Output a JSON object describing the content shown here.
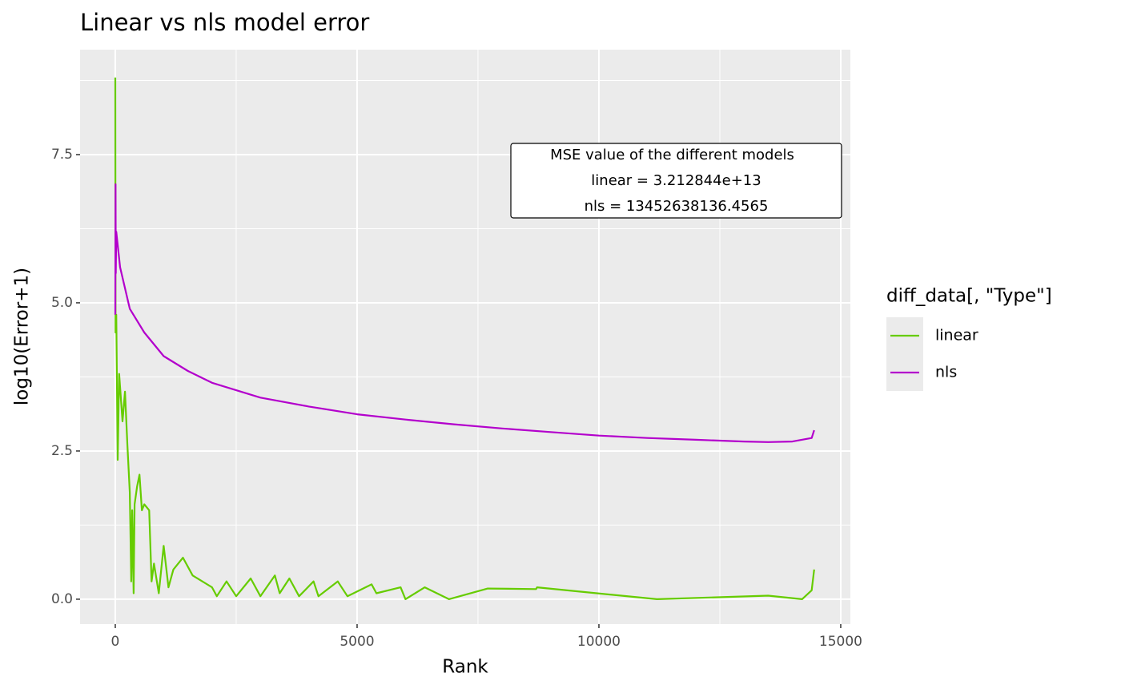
{
  "chart_data": {
    "type": "line",
    "title": "Linear vs nls model error",
    "x_label": "Rank",
    "y_label": "log10(Error+1)",
    "legend_title": "diff_data[, \"Type\"]",
    "legend": "right",
    "annotation": [
      "MSE  value of the different models",
      "linear = 3.212844e+13",
      "nls = 13452638136.4565"
    ],
    "xlim": [
      -728,
      15199
    ],
    "ylim": [
      -0.42,
      9.27
    ],
    "xticks": [
      0,
      5000,
      10000,
      15000
    ],
    "yticks": [
      {
        "value": 0,
        "label": "0.0"
      },
      2.5,
      {
        "value": 5,
        "label": "5.0"
      },
      7.5
    ],
    "minor_xticks": [
      2500,
      7500,
      12500
    ],
    "minor_yticks": [
      1.25,
      3.75,
      6.25,
      8.75
    ],
    "grid": true,
    "series": [
      {
        "name": "linear",
        "color": "#66cc00",
        "x": [
          0,
          5,
          20,
          50,
          80,
          150,
          200,
          250,
          300,
          330,
          350,
          380,
          400,
          450,
          500,
          550,
          600,
          700,
          750,
          800,
          900,
          1000,
          1100,
          1200,
          1400,
          1600,
          1800,
          2000,
          2100,
          2300,
          2500,
          2800,
          3000,
          3300,
          3400,
          3600,
          3800,
          4100,
          4200,
          4600,
          4800,
          5300,
          5400,
          5900,
          6000,
          6400,
          6900,
          7700,
          8700,
          8720,
          11200,
          13500,
          14200,
          14400,
          14450
        ],
        "values": [
          8.8,
          4.5,
          4.8,
          2.35,
          3.8,
          3.0,
          3.5,
          2.6,
          1.8,
          0.3,
          1.5,
          0.1,
          1.6,
          1.9,
          2.1,
          1.5,
          1.6,
          1.5,
          0.3,
          0.6,
          0.1,
          0.9,
          0.2,
          0.5,
          0.7,
          0.4,
          0.3,
          0.2,
          0.05,
          0.3,
          0.05,
          0.35,
          0.05,
          0.4,
          0.1,
          0.35,
          0.05,
          0.3,
          0.05,
          0.3,
          0.05,
          0.25,
          0.1,
          0.2,
          0.0,
          0.2,
          0.0,
          0.18,
          0.17,
          0.2,
          0.0,
          0.06,
          0.0,
          0.15,
          0.5
        ]
      },
      {
        "name": "nls",
        "color": "#b300cc",
        "x": [
          0,
          5,
          10,
          20,
          100,
          300,
          600,
          1000,
          1500,
          2000,
          3000,
          4000,
          5000,
          6000,
          7000,
          8000,
          9000,
          10000,
          11000,
          12000,
          13000,
          13500,
          14000,
          14400,
          14450
        ],
        "values": [
          4.8,
          7.0,
          5.5,
          6.2,
          5.6,
          4.9,
          4.5,
          4.1,
          3.85,
          3.65,
          3.4,
          3.25,
          3.12,
          3.03,
          2.95,
          2.88,
          2.82,
          2.76,
          2.72,
          2.69,
          2.66,
          2.65,
          2.66,
          2.72,
          2.85
        ]
      }
    ]
  }
}
